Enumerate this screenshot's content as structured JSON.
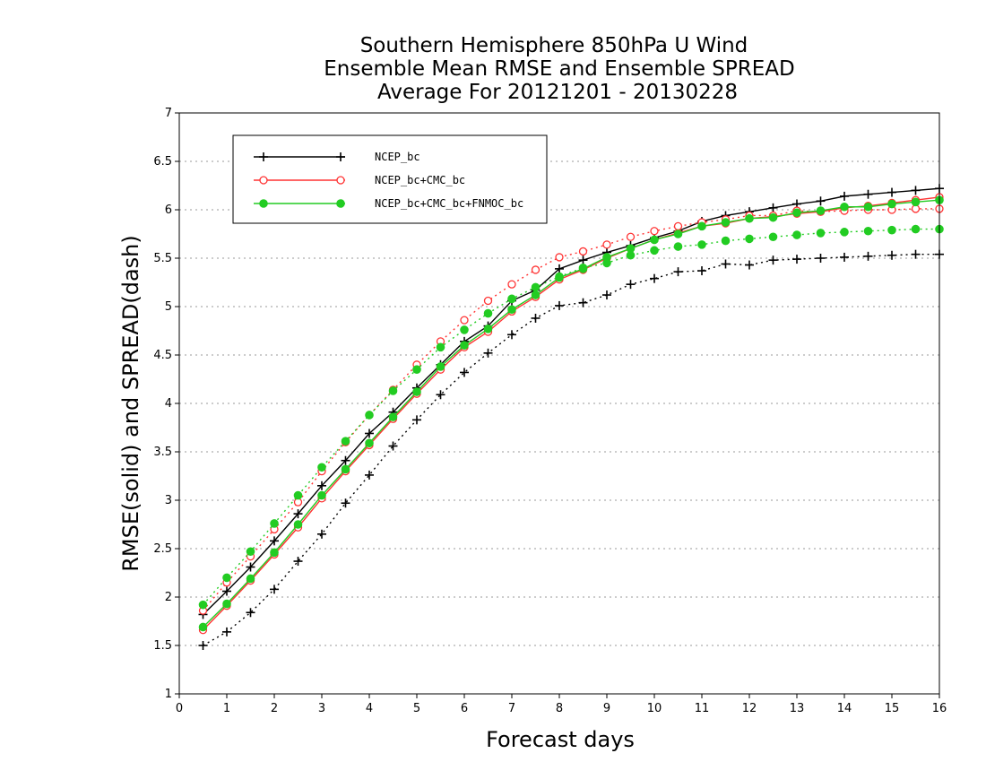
{
  "chart_data": {
    "type": "line",
    "title_lines": [
      "Southern Hemisphere 850hPa U Wind",
      "Ensemble Mean RMSE and Ensemble SPREAD",
      "Average For 20121201 - 20130228"
    ],
    "xlabel": "Forecast days",
    "ylabel": "RMSE(solid) and SPREAD(dash)",
    "xlim": [
      0,
      16
    ],
    "ylim": [
      1,
      7
    ],
    "x_ticks": [
      "0",
      "1",
      "2",
      "3",
      "4",
      "5",
      "6",
      "7",
      "8",
      "9",
      "10",
      "11",
      "12",
      "13",
      "14",
      "15",
      "16"
    ],
    "y_ticks": [
      "1",
      "1.5",
      "2",
      "2.5",
      "3",
      "3.5",
      "4",
      "4.5",
      "5",
      "5.5",
      "6",
      "6.5",
      "7"
    ],
    "grid": "horizontal dotted",
    "legend_position": "top-left",
    "x": [
      0.5,
      1,
      1.5,
      2,
      2.5,
      3,
      3.5,
      4,
      4.5,
      5,
      5.5,
      6,
      6.5,
      7,
      7.5,
      8,
      8.5,
      9,
      9.5,
      10,
      10.5,
      11,
      11.5,
      12,
      12.5,
      13,
      13.5,
      14,
      14.5,
      15,
      15.5,
      16
    ],
    "series": [
      {
        "name": "NCEP_bc",
        "color": "#000000",
        "marker": "plus",
        "rmse": [
          1.82,
          2.06,
          2.31,
          2.58,
          2.86,
          3.15,
          3.41,
          3.69,
          3.91,
          4.16,
          4.4,
          4.64,
          4.8,
          5.06,
          5.17,
          5.39,
          5.48,
          5.56,
          5.63,
          5.71,
          5.78,
          5.88,
          5.94,
          5.98,
          6.02,
          6.06,
          6.09,
          6.14,
          6.16,
          6.18,
          6.2,
          6.22
        ],
        "spread": [
          1.5,
          1.64,
          1.84,
          2.08,
          2.37,
          2.65,
          2.97,
          3.26,
          3.56,
          3.83,
          4.09,
          4.32,
          4.52,
          4.71,
          4.88,
          5.01,
          5.04,
          5.12,
          5.23,
          5.29,
          5.36,
          5.37,
          5.44,
          5.43,
          5.48,
          5.49,
          5.5,
          5.51,
          5.52,
          5.53,
          5.54,
          5.54
        ]
      },
      {
        "name": "NCEP_bc+CMC_bc",
        "color": "#ff3333",
        "marker": "open-circle",
        "rmse": [
          1.66,
          1.91,
          2.17,
          2.44,
          2.72,
          3.02,
          3.3,
          3.57,
          3.84,
          4.1,
          4.35,
          4.58,
          4.74,
          4.95,
          5.1,
          5.28,
          5.38,
          5.5,
          5.6,
          5.69,
          5.76,
          5.83,
          5.86,
          5.91,
          5.93,
          5.96,
          5.98,
          6.02,
          6.04,
          6.07,
          6.1,
          6.13
        ],
        "spread": [
          1.86,
          2.15,
          2.42,
          2.7,
          2.98,
          3.3,
          3.6,
          3.88,
          4.14,
          4.4,
          4.64,
          4.86,
          5.06,
          5.23,
          5.38,
          5.51,
          5.57,
          5.64,
          5.72,
          5.78,
          5.83,
          5.87,
          5.9,
          5.94,
          5.94,
          5.99,
          5.98,
          5.99,
          6.0,
          6.0,
          6.01,
          6.01
        ]
      },
      {
        "name": "NCEP_bc+CMC_bc+FNMOC_bc",
        "color": "#22cc22",
        "marker": "filled-circle",
        "rmse": [
          1.69,
          1.93,
          2.19,
          2.46,
          2.75,
          3.05,
          3.32,
          3.59,
          3.86,
          4.12,
          4.38,
          4.6,
          4.77,
          4.97,
          5.12,
          5.3,
          5.39,
          5.51,
          5.6,
          5.69,
          5.75,
          5.83,
          5.87,
          5.91,
          5.92,
          5.97,
          5.99,
          6.03,
          6.03,
          6.06,
          6.08,
          6.1
        ],
        "spread": [
          1.92,
          2.2,
          2.47,
          2.76,
          3.05,
          3.34,
          3.61,
          3.88,
          4.13,
          4.35,
          4.58,
          4.76,
          4.93,
          5.08,
          5.2,
          5.31,
          5.4,
          5.45,
          5.53,
          5.58,
          5.62,
          5.64,
          5.68,
          5.7,
          5.72,
          5.74,
          5.76,
          5.77,
          5.78,
          5.79,
          5.8,
          5.8
        ]
      }
    ]
  }
}
